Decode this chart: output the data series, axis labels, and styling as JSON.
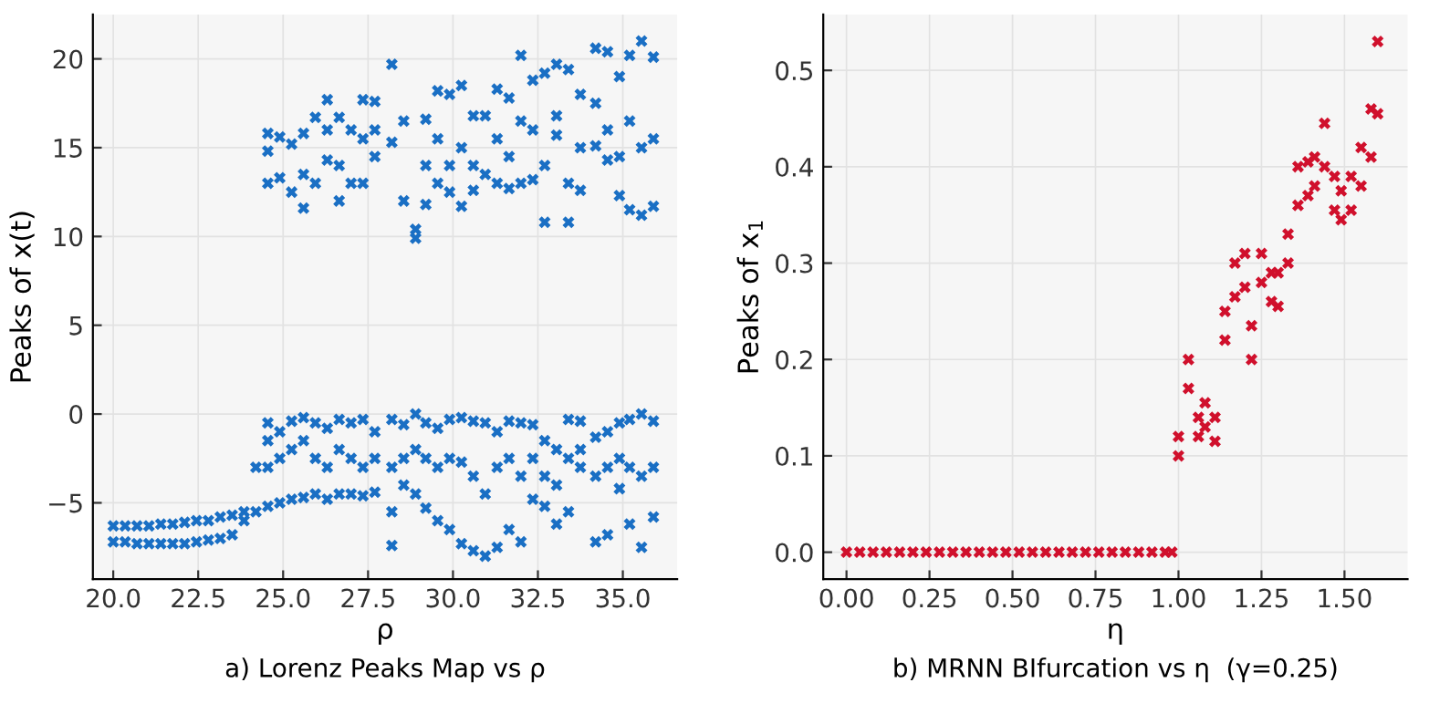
{
  "chart_data": [
    {
      "type": "scatter",
      "title": "a) Lorenz Peaks Map vs ρ",
      "xlabel": "ρ",
      "ylabel": "Peaks of x(t)",
      "xlim": [
        19.4,
        36.6
      ],
      "ylim": [
        -9.3,
        22.5
      ],
      "xticks": [
        {
          "value": 20,
          "label": "20.0"
        },
        {
          "value": 22.5,
          "label": "22.5"
        },
        {
          "value": 25,
          "label": "25.0"
        },
        {
          "value": 27.5,
          "label": "27.5"
        },
        {
          "value": 30,
          "label": "30.0"
        },
        {
          "value": 32.5,
          "label": "32.5"
        },
        {
          "value": 35,
          "label": "35.0"
        }
      ],
      "yticks": [
        {
          "value": -5,
          "label": "−5"
        },
        0,
        5,
        10,
        15,
        20
      ],
      "grid": true,
      "marker": "cross",
      "series": [
        {
          "color": "#1a6fc4",
          "x": [
            20.0,
            20.0,
            20.35,
            20.35,
            20.7,
            20.7,
            21.05,
            21.05,
            21.4,
            21.4,
            21.75,
            21.75,
            22.1,
            22.1,
            22.45,
            22.45,
            22.8,
            22.8,
            23.15,
            23.15,
            23.5,
            23.5,
            23.85,
            23.85,
            24.2,
            24.2,
            24.55,
            24.55,
            24.55,
            24.55,
            24.55,
            24.55,
            24.55,
            24.9,
            24.9,
            24.9,
            24.9,
            24.9,
            25.25,
            25.25,
            25.25,
            25.25,
            25.25,
            25.6,
            25.6,
            25.6,
            25.6,
            25.6,
            25.6,
            25.95,
            25.95,
            25.95,
            25.95,
            25.95,
            26.3,
            26.3,
            26.3,
            26.3,
            26.3,
            26.3,
            26.65,
            26.65,
            26.65,
            26.65,
            26.65,
            26.65,
            27.0,
            27.0,
            27.0,
            27.0,
            27.0,
            27.35,
            27.35,
            27.35,
            27.35,
            27.35,
            27.35,
            27.7,
            27.7,
            27.7,
            27.7,
            27.7,
            27.7,
            28.2,
            28.2,
            28.2,
            28.2,
            28.2,
            28.2,
            28.55,
            28.55,
            28.55,
            28.55,
            28.55,
            28.9,
            28.9,
            28.9,
            28.9,
            28.9,
            29.2,
            29.2,
            29.2,
            29.2,
            29.2,
            29.2,
            29.55,
            29.55,
            29.55,
            29.55,
            29.55,
            29.55,
            29.9,
            29.9,
            29.9,
            29.9,
            29.9,
            29.9,
            30.25,
            30.25,
            30.25,
            30.25,
            30.25,
            30.25,
            30.6,
            30.6,
            30.6,
            30.6,
            30.6,
            30.6,
            30.95,
            30.95,
            30.95,
            30.95,
            30.95,
            31.3,
            31.3,
            31.3,
            31.3,
            31.3,
            31.3,
            31.65,
            31.65,
            31.65,
            31.65,
            31.65,
            31.65,
            32.0,
            32.0,
            32.0,
            32.0,
            32.0,
            32.0,
            32.35,
            32.35,
            32.35,
            32.35,
            32.35,
            32.35,
            32.7,
            32.7,
            32.7,
            32.7,
            32.7,
            32.7,
            33.05,
            33.05,
            33.05,
            33.05,
            33.05,
            33.05,
            33.4,
            33.4,
            33.4,
            33.4,
            33.4,
            33.4,
            33.75,
            33.75,
            33.75,
            33.75,
            33.75,
            33.75,
            34.2,
            34.2,
            34.2,
            34.2,
            34.2,
            34.2,
            34.55,
            34.55,
            34.55,
            34.55,
            34.55,
            34.55,
            34.9,
            34.9,
            34.9,
            34.9,
            34.9,
            34.9,
            35.2,
            35.2,
            35.2,
            35.2,
            35.2,
            35.2,
            35.55,
            35.55,
            35.55,
            35.55,
            35.55,
            35.55,
            35.9,
            35.9,
            35.9,
            35.9,
            35.9,
            35.9
          ],
          "values": [
            -6.3,
            -7.2,
            -6.3,
            -7.2,
            -6.3,
            -7.3,
            -6.3,
            -7.3,
            -6.2,
            -7.3,
            -6.2,
            -7.3,
            -6.1,
            -7.3,
            -6.0,
            -7.2,
            -6.0,
            -7.1,
            -5.8,
            -7.0,
            -5.7,
            -6.8,
            -5.5,
            -6.0,
            -3.0,
            -5.5,
            -0.5,
            -1.5,
            -3.0,
            -5.2,
            15.8,
            14.8,
            13.0,
            -1.0,
            -2.5,
            -5.0,
            15.6,
            13.3,
            -0.4,
            -2.0,
            -4.8,
            15.2,
            12.5,
            -0.2,
            -1.5,
            -4.7,
            15.8,
            13.5,
            11.6,
            -0.5,
            -2.5,
            -4.5,
            16.7,
            13.0,
            -0.8,
            -3.0,
            -4.8,
            17.7,
            16.0,
            14.3,
            -0.3,
            -2.0,
            -4.5,
            16.7,
            14.0,
            12.0,
            -0.5,
            -2.5,
            -4.5,
            16.0,
            13.0,
            -0.3,
            -3.0,
            -4.6,
            17.7,
            15.5,
            13.0,
            -1.0,
            -2.5,
            -4.4,
            17.6,
            16.0,
            14.5,
            -0.3,
            -3.0,
            -5.5,
            -7.4,
            19.7,
            15.3,
            -0.6,
            -2.5,
            -4.0,
            16.5,
            12.0,
            0.0,
            -2.0,
            -4.5,
            10.4,
            9.9,
            -0.5,
            -2.5,
            -5.3,
            16.6,
            14.0,
            11.8,
            -0.8,
            -3.0,
            -6.0,
            18.2,
            15.5,
            13.0,
            -0.3,
            -2.5,
            -6.5,
            18.0,
            14.0,
            12.5,
            -0.2,
            -2.7,
            -7.3,
            18.5,
            15.0,
            11.7,
            -0.4,
            -3.5,
            -7.7,
            16.8,
            14.0,
            12.6,
            -0.5,
            -4.5,
            -8.0,
            16.8,
            13.5,
            -1.0,
            -3.0,
            -7.5,
            18.3,
            15.5,
            13.0,
            -0.4,
            -2.5,
            -6.5,
            17.8,
            14.5,
            12.7,
            -0.5,
            -3.5,
            -7.2,
            20.2,
            16.5,
            13.0,
            -0.6,
            -2.5,
            -4.8,
            18.8,
            16.0,
            13.2,
            -1.5,
            -3.5,
            -5.2,
            19.2,
            14.0,
            10.8,
            -2.0,
            -4.0,
            -6.2,
            19.7,
            16.8,
            15.7,
            -0.3,
            -2.5,
            -5.5,
            19.4,
            13.0,
            10.8,
            -0.4,
            -2.0,
            -3.0,
            18.0,
            15.0,
            12.6,
            -1.3,
            -3.5,
            -7.2,
            20.6,
            17.5,
            15.1,
            -1.0,
            -3.0,
            -6.8,
            20.4,
            16.0,
            14.3,
            -0.5,
            -2.5,
            -4.2,
            19.0,
            14.5,
            12.3,
            -0.3,
            -3.0,
            -6.2,
            20.2,
            16.5,
            11.5,
            0.0,
            -3.5,
            -7.5,
            21.0,
            15.0,
            11.2,
            -0.4,
            -3.0,
            -5.8,
            20.1,
            15.5,
            11.7
          ]
        }
      ]
    },
    {
      "type": "scatter",
      "title": "b) MRNN BIfurcation vs η  (γ=0.25)",
      "xlabel": "η",
      "ylabel": "Peaks of x$_{1}$",
      "xlim": [
        -0.07,
        1.69
      ],
      "ylim": [
        -0.028,
        0.558
      ],
      "xticks": [
        {
          "value": 0,
          "label": "0.00"
        },
        {
          "value": 0.25,
          "label": "0.25"
        },
        {
          "value": 0.5,
          "label": "0.50"
        },
        {
          "value": 0.75,
          "label": "0.75"
        },
        {
          "value": 1.0,
          "label": "1.00"
        },
        {
          "value": 1.25,
          "label": "1.25"
        },
        {
          "value": 1.5,
          "label": "1.50"
        }
      ],
      "yticks": [
        {
          "value": 0,
          "label": "0.0"
        },
        0.1,
        0.2,
        0.3,
        0.4,
        0.5
      ],
      "grid": true,
      "marker": "cross",
      "series": [
        {
          "color": "#d0102c",
          "x": [
            0.0,
            0.04,
            0.08,
            0.12,
            0.16,
            0.2,
            0.24,
            0.28,
            0.32,
            0.36,
            0.4,
            0.44,
            0.48,
            0.52,
            0.56,
            0.6,
            0.64,
            0.68,
            0.72,
            0.76,
            0.8,
            0.84,
            0.88,
            0.92,
            0.96,
            0.98,
            1.0,
            1.0,
            1.03,
            1.03,
            1.06,
            1.06,
            1.08,
            1.08,
            1.11,
            1.11,
            1.14,
            1.14,
            1.17,
            1.17,
            1.2,
            1.2,
            1.22,
            1.22,
            1.25,
            1.25,
            1.28,
            1.28,
            1.3,
            1.3,
            1.33,
            1.33,
            1.36,
            1.36,
            1.39,
            1.39,
            1.41,
            1.41,
            1.44,
            1.44,
            1.47,
            1.47,
            1.49,
            1.49,
            1.52,
            1.52,
            1.55,
            1.55,
            1.58,
            1.58,
            1.6,
            1.6
          ],
          "values": [
            0,
            0,
            0,
            0,
            0,
            0,
            0,
            0,
            0,
            0,
            0,
            0,
            0,
            0,
            0,
            0,
            0,
            0,
            0,
            0,
            0,
            0,
            0,
            0,
            0,
            0,
            0.12,
            0.1,
            0.2,
            0.17,
            0.14,
            0.12,
            0.155,
            0.13,
            0.14,
            0.115,
            0.25,
            0.22,
            0.3,
            0.265,
            0.31,
            0.275,
            0.235,
            0.2,
            0.31,
            0.28,
            0.29,
            0.26,
            0.29,
            0.255,
            0.33,
            0.3,
            0.4,
            0.36,
            0.405,
            0.37,
            0.41,
            0.38,
            0.445,
            0.4,
            0.39,
            0.355,
            0.375,
            0.345,
            0.39,
            0.355,
            0.42,
            0.38,
            0.46,
            0.41,
            0.53,
            0.455
          ]
        }
      ]
    }
  ]
}
